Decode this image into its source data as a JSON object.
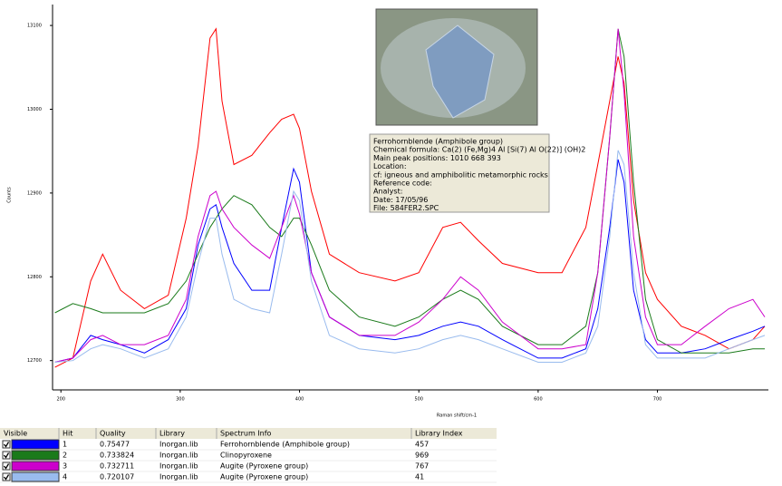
{
  "chart_data": {
    "type": "line",
    "xlabel": "Raman shift/cm-1",
    "ylabel": "Counts",
    "xlim": [
      193,
      793
    ],
    "ylim": [
      12665,
      13125
    ],
    "xticks": [
      200,
      300,
      400,
      500,
      600,
      700
    ],
    "yticks": [
      12700,
      12800,
      12900,
      13000,
      13100
    ],
    "x": [
      195,
      210,
      225,
      235,
      250,
      270,
      290,
      305,
      315,
      325,
      330,
      335,
      345,
      360,
      375,
      385,
      395,
      400,
      410,
      425,
      450,
      480,
      500,
      520,
      535,
      550,
      570,
      600,
      620,
      640,
      650,
      660,
      667,
      672,
      680,
      690,
      700,
      720,
      740,
      760,
      780,
      790
    ],
    "series": [
      {
        "color": "#ff0000",
        "values": [
          12692,
          12703,
          12795,
          12827,
          12784,
          12762,
          12778,
          12870,
          12956,
          13085,
          13096,
          13010,
          12934,
          12945,
          12972,
          12988,
          12994,
          12977,
          12902,
          12827,
          12805,
          12795,
          12805,
          12859,
          12865,
          12843,
          12816,
          12805,
          12805,
          12859,
          12934,
          13010,
          13063,
          13031,
          12891,
          12805,
          12773,
          12741,
          12730,
          12714,
          12725,
          12741
        ]
      },
      {
        "color": "#0000ff",
        "values": [
          12698,
          12703,
          12730,
          12725,
          12719,
          12709,
          12725,
          12762,
          12838,
          12881,
          12886,
          12859,
          12816,
          12784,
          12784,
          12859,
          12929,
          12913,
          12805,
          12752,
          12730,
          12725,
          12730,
          12741,
          12746,
          12741,
          12725,
          12703,
          12703,
          12714,
          12762,
          12859,
          12940,
          12913,
          12784,
          12725,
          12709,
          12709,
          12714,
          12725,
          12735,
          12741
        ]
      },
      {
        "color": "#1a7a1a",
        "values": [
          12757,
          12768,
          12762,
          12757,
          12757,
          12757,
          12768,
          12795,
          12827,
          12859,
          12870,
          12881,
          12897,
          12886,
          12859,
          12848,
          12870,
          12870,
          12838,
          12784,
          12752,
          12741,
          12752,
          12773,
          12784,
          12773,
          12741,
          12719,
          12719,
          12741,
          12805,
          12967,
          13096,
          13063,
          12913,
          12773,
          12725,
          12709,
          12709,
          12709,
          12714,
          12714
        ]
      },
      {
        "color": "#cc00cc",
        "values": [
          12698,
          12703,
          12725,
          12730,
          12719,
          12719,
          12730,
          12773,
          12848,
          12897,
          12902,
          12881,
          12859,
          12838,
          12822,
          12859,
          12897,
          12875,
          12805,
          12752,
          12730,
          12730,
          12746,
          12773,
          12800,
          12784,
          12746,
          12714,
          12714,
          12719,
          12805,
          12967,
          13096,
          13020,
          12848,
          12752,
          12719,
          12719,
          12741,
          12762,
          12773,
          12752
        ]
      },
      {
        "color": "#99bbee",
        "values": [
          12698,
          12700,
          12714,
          12719,
          12714,
          12703,
          12714,
          12752,
          12816,
          12870,
          12870,
          12827,
          12773,
          12762,
          12757,
          12827,
          12902,
          12891,
          12795,
          12730,
          12714,
          12709,
          12714,
          12725,
          12730,
          12725,
          12714,
          12698,
          12698,
          12709,
          12741,
          12848,
          12951,
          12934,
          12805,
          12719,
          12703,
          12703,
          12703,
          12714,
          12725,
          12730
        ]
      }
    ]
  },
  "tooltip": {
    "lines": [
      "Ferrohornblende (Amphibole group)",
      "Chemical formula: Ca(2) (Fe,Mg)4 Al [Si(7) Al O(22)] (OH)2",
      "Main peak positions: 1010 668 393",
      "Location:",
      "cf: igneous and amphibolitic metamorphic rocks",
      "Reference code:",
      "Analyst:",
      "Date: 17/05/96",
      "File: 584FER2.SPC"
    ]
  },
  "table": {
    "columns": [
      "Visible",
      "Hit",
      "Quality",
      "Library",
      "Spectrum Info",
      "Library Index"
    ],
    "rows": [
      [
        "1",
        "0.75477",
        "Inorgan.lib",
        "Ferrohornblende (Amphibole group)",
        "457"
      ],
      [
        "2",
        "0.733824",
        "Inorgan.lib",
        "Clinopyroxene",
        "969"
      ],
      [
        "3",
        "0.732711",
        "Inorgan.lib",
        "Augite (Pyroxene group)",
        "767"
      ],
      [
        "4",
        "0.720107",
        "Inorgan.lib",
        "Augite (Pyroxene group)",
        "41"
      ]
    ]
  }
}
